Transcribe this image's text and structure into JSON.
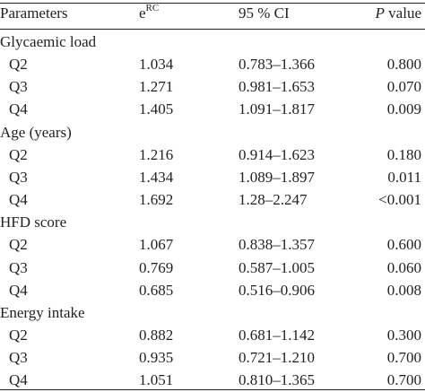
{
  "header": {
    "parameters": "Parameters",
    "erc_base": "e",
    "erc_sup": "RC",
    "ci": "95 % CI",
    "p_italic": "P",
    "p_rest": " value"
  },
  "groups": [
    {
      "name": "Glycaemic load",
      "rows": [
        {
          "level": "Q2",
          "erc": "1.034",
          "ci": "0.783–1.366",
          "p": "0.800"
        },
        {
          "level": "Q3",
          "erc": "1.271",
          "ci": "0.981–1.653",
          "p": "0.070"
        },
        {
          "level": "Q4",
          "erc": "1.405",
          "ci": "1.091–1.817",
          "p": "0.009"
        }
      ]
    },
    {
      "name": "Age (years)",
      "rows": [
        {
          "level": "Q2",
          "erc": "1.216",
          "ci": "0.914–1.623",
          "p": "0.180"
        },
        {
          "level": "Q3",
          "erc": "1.434",
          "ci": "1.089–1.897",
          "p": "0.011"
        },
        {
          "level": "Q4",
          "erc": "1.692",
          "ci": "1.28–2.247",
          "p": "<0.001"
        }
      ]
    },
    {
      "name": "HFD score",
      "rows": [
        {
          "level": "Q2",
          "erc": "1.067",
          "ci": "0.838–1.357",
          "p": "0.600"
        },
        {
          "level": "Q3",
          "erc": "0.769",
          "ci": "0.587–1.005",
          "p": "0.060"
        },
        {
          "level": "Q4",
          "erc": "0.685",
          "ci": "0.516–0.906",
          "p": "0.008"
        }
      ]
    },
    {
      "name": "Energy intake",
      "rows": [
        {
          "level": "Q2",
          "erc": "0.882",
          "ci": "0.681–1.142",
          "p": "0.300"
        },
        {
          "level": "Q3",
          "erc": "0.935",
          "ci": "0.721–1.210",
          "p": "0.700"
        },
        {
          "level": "Q4",
          "erc": "1.051",
          "ci": "0.810–1.365",
          "p": "0.700"
        }
      ]
    }
  ]
}
